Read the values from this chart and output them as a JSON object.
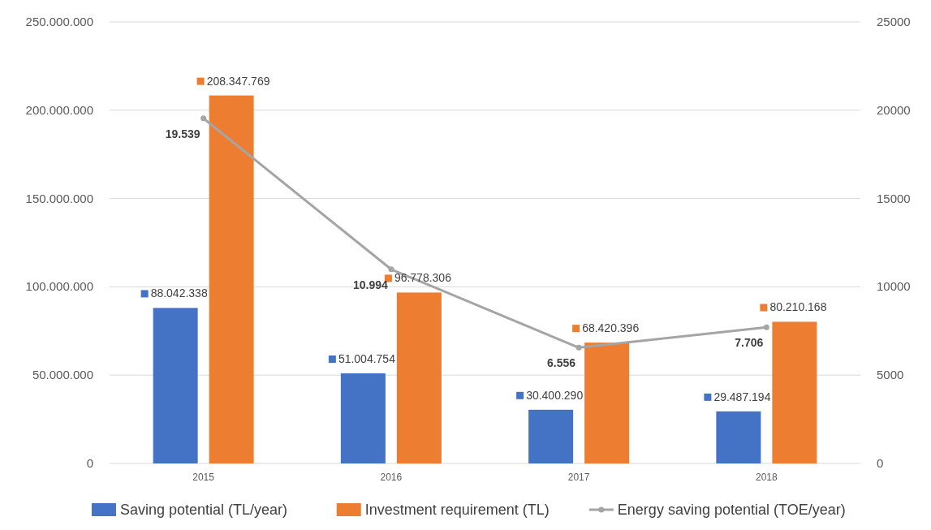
{
  "chart_data": {
    "type": "bar",
    "categories": [
      "2015",
      "2016",
      "2017",
      "2018"
    ],
    "series": [
      {
        "name": "Saving potential (TL/year)",
        "color": "#4472c4",
        "values": [
          88042338,
          51004754,
          30400290,
          29487194
        ],
        "value_labels": [
          "88.042.338",
          "51.004.754",
          "30.400.290",
          "29.487.194"
        ]
      },
      {
        "name": "Investment requirement (TL)",
        "color": "#ed7d31",
        "values": [
          208347769,
          96778306,
          68420396,
          80210168
        ],
        "value_labels": [
          "208.347.769",
          "96.778.306",
          "68.420.396",
          "80.210.168"
        ]
      },
      {
        "name": "Energy saving potential (TOE/year)",
        "type": "line",
        "axis": "y2",
        "color": "#a5a5a5",
        "marker": "circle",
        "values": [
          19539,
          10994,
          6556,
          7706
        ],
        "value_labels": [
          "19.539",
          "10.994",
          "6.556",
          "7.706"
        ]
      }
    ],
    "ylim": [
      0,
      250000000
    ],
    "yticks": [
      0,
      {
        "value": 50000000,
        "label": "50.000.000"
      },
      {
        "value": 100000000,
        "label": "100.000.000"
      },
      {
        "value": 150000000,
        "label": "150.000.000"
      },
      {
        "value": 200000000,
        "label": "200.000.000"
      },
      {
        "value": 250000000,
        "label": "250.000.000"
      }
    ],
    "y2lim": [
      0,
      25000
    ],
    "y2ticks": [
      0,
      5000,
      10000,
      15000,
      20000,
      25000
    ],
    "grid": "y",
    "legend": "bottom"
  }
}
